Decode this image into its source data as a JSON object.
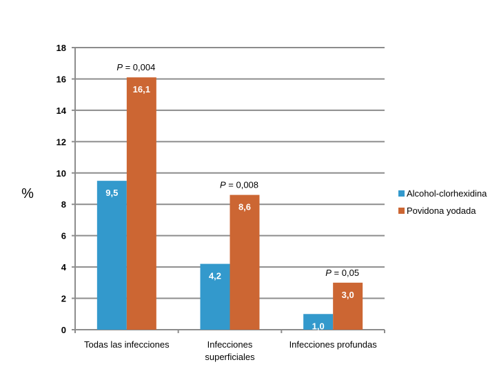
{
  "chart_data": {
    "type": "bar",
    "ylabel": "%",
    "xlabel": "",
    "ylim": [
      0,
      18
    ],
    "yticks": [
      "0",
      "2",
      "4",
      "6",
      "8",
      "10",
      "12",
      "14",
      "16",
      "18"
    ],
    "grid": true,
    "legend_position": "right",
    "categories": [
      [
        "Todas las infecciones"
      ],
      [
        "Infecciones",
        "superficiales"
      ],
      [
        "Infecciones profundas"
      ]
    ],
    "series": [
      {
        "name": "Alcohol-clorhexidina",
        "color": "#3399CC",
        "values": [
          9.5,
          4.2,
          1.0
        ],
        "labels": [
          "9,5",
          "4,2",
          "1,0"
        ]
      },
      {
        "name": "Povidona yodada",
        "color": "#CC6633",
        "values": [
          16.1,
          8.6,
          3.0
        ],
        "labels": [
          "16,1",
          "8,6",
          "3,0"
        ]
      }
    ],
    "annotations": [
      {
        "italic": "P",
        "text": " = 0,004"
      },
      {
        "italic": "P",
        "text": " = 0,008"
      },
      {
        "italic": "P",
        "text": " = 0,05"
      }
    ]
  }
}
